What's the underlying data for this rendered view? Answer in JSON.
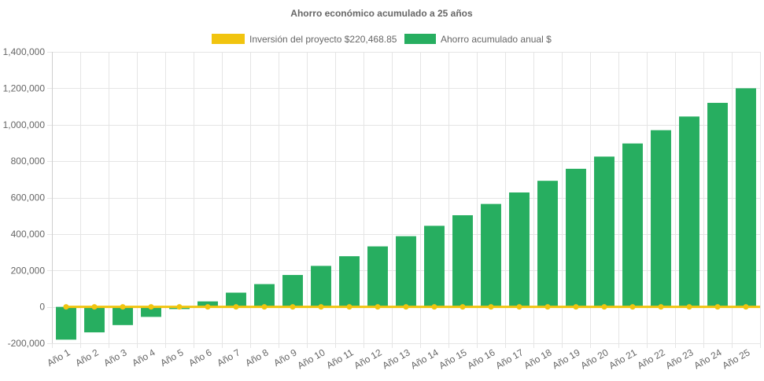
{
  "colors": {
    "savings": "#27ae60",
    "investment": "#f1c40f",
    "text": "#666666"
  },
  "chart_data": {
    "type": "bar",
    "title": "Ahorro económico acumulado a 25 años",
    "legend_position": "top",
    "grid": true,
    "categories": [
      "Año 1",
      "Año 2",
      "Año 3",
      "Año 4",
      "Año 5",
      "Año 6",
      "Año 7",
      "Año 8",
      "Año 9",
      "Año 10",
      "Año 11",
      "Año 12",
      "Año 13",
      "Año 14",
      "Año 15",
      "Año 16",
      "Año 17",
      "Año 18",
      "Año 19",
      "Año 20",
      "Año 21",
      "Año 22",
      "Año 23",
      "Año 24",
      "Año 25"
    ],
    "ylim": [
      -200000,
      1400000
    ],
    "yticks": [
      1400000,
      1200000,
      1000000,
      800000,
      600000,
      400000,
      200000,
      0,
      -200000
    ],
    "ytick_labels": [
      "1,400,000",
      "1,200,000",
      "1,000,000",
      "800,000",
      "600,000",
      "400,000",
      "200,000",
      "0",
      "-200,000"
    ],
    "series": [
      {
        "name": "Inversión del proyecto $220,468.85",
        "type": "line",
        "color": "#f1c40f",
        "values": [
          0,
          0,
          0,
          0,
          0,
          0,
          0,
          0,
          0,
          0,
          0,
          0,
          0,
          0,
          0,
          0,
          0,
          0,
          0,
          0,
          0,
          0,
          0,
          0,
          0
        ]
      },
      {
        "name": "Ahorro acumulado anual $",
        "type": "bar",
        "color": "#27ae60",
        "values": [
          -180000,
          -140000,
          -100000,
          -55000,
          -12000,
          30000,
          78000,
          125000,
          175000,
          225000,
          278000,
          332000,
          388000,
          445000,
          503000,
          565000,
          628000,
          692000,
          758000,
          825000,
          897000,
          970000,
          1045000,
          1120000,
          1200000
        ]
      }
    ]
  }
}
